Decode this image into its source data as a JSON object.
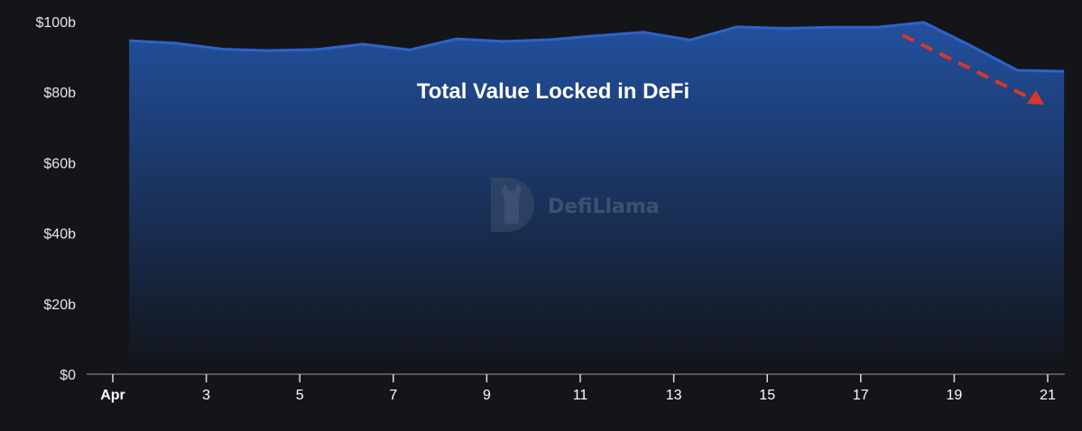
{
  "chart_data": {
    "type": "area",
    "title": "Total Value Locked in DeFi",
    "xlabel": "",
    "ylabel": "",
    "x": [
      "Apr 1",
      "Apr 2",
      "Apr 3",
      "Apr 4",
      "Apr 5",
      "Apr 6",
      "Apr 7",
      "Apr 8",
      "Apr 9",
      "Apr 10",
      "Apr 11",
      "Apr 12",
      "Apr 13",
      "Apr 14",
      "Apr 15",
      "Apr 16",
      "Apr 17",
      "Apr 18",
      "Apr 19",
      "Apr 20",
      "Apr 21"
    ],
    "series": [
      {
        "values": [
          94.6,
          93.9,
          92.2,
          91.8,
          92.1,
          93.6,
          92.0,
          95.1,
          94.4,
          94.9,
          96.0,
          97.0,
          94.8,
          98.5,
          98.1,
          98.4,
          98.4,
          99.8,
          93.2,
          86.2,
          85.9
        ]
      }
    ],
    "ylim": [
      0,
      100
    ],
    "yticks": [
      0,
      20,
      40,
      60,
      80,
      100
    ],
    "ytick_labels": [
      "$0",
      "$20b",
      "$40b",
      "$60b",
      "$80b",
      "$100b"
    ],
    "xtick_labels": [
      "Apr",
      "3",
      "5",
      "7",
      "9",
      "11",
      "13",
      "15",
      "17",
      "19",
      "21"
    ],
    "xtick_days": [
      1,
      3,
      5,
      7,
      9,
      11,
      13,
      15,
      17,
      19,
      21
    ],
    "grid": false,
    "legend": "none",
    "annotation": {
      "type": "dashed-arrow",
      "direction": "down",
      "from": "Apr 18",
      "to": "Apr 21"
    },
    "watermark": "DefiLlama",
    "colors": {
      "background": "#141518",
      "line": "#2f62c8",
      "fill_top": "#22509f",
      "fill_bottom": "#121418",
      "arrow": "#d8372a",
      "axis": "#555555"
    }
  }
}
